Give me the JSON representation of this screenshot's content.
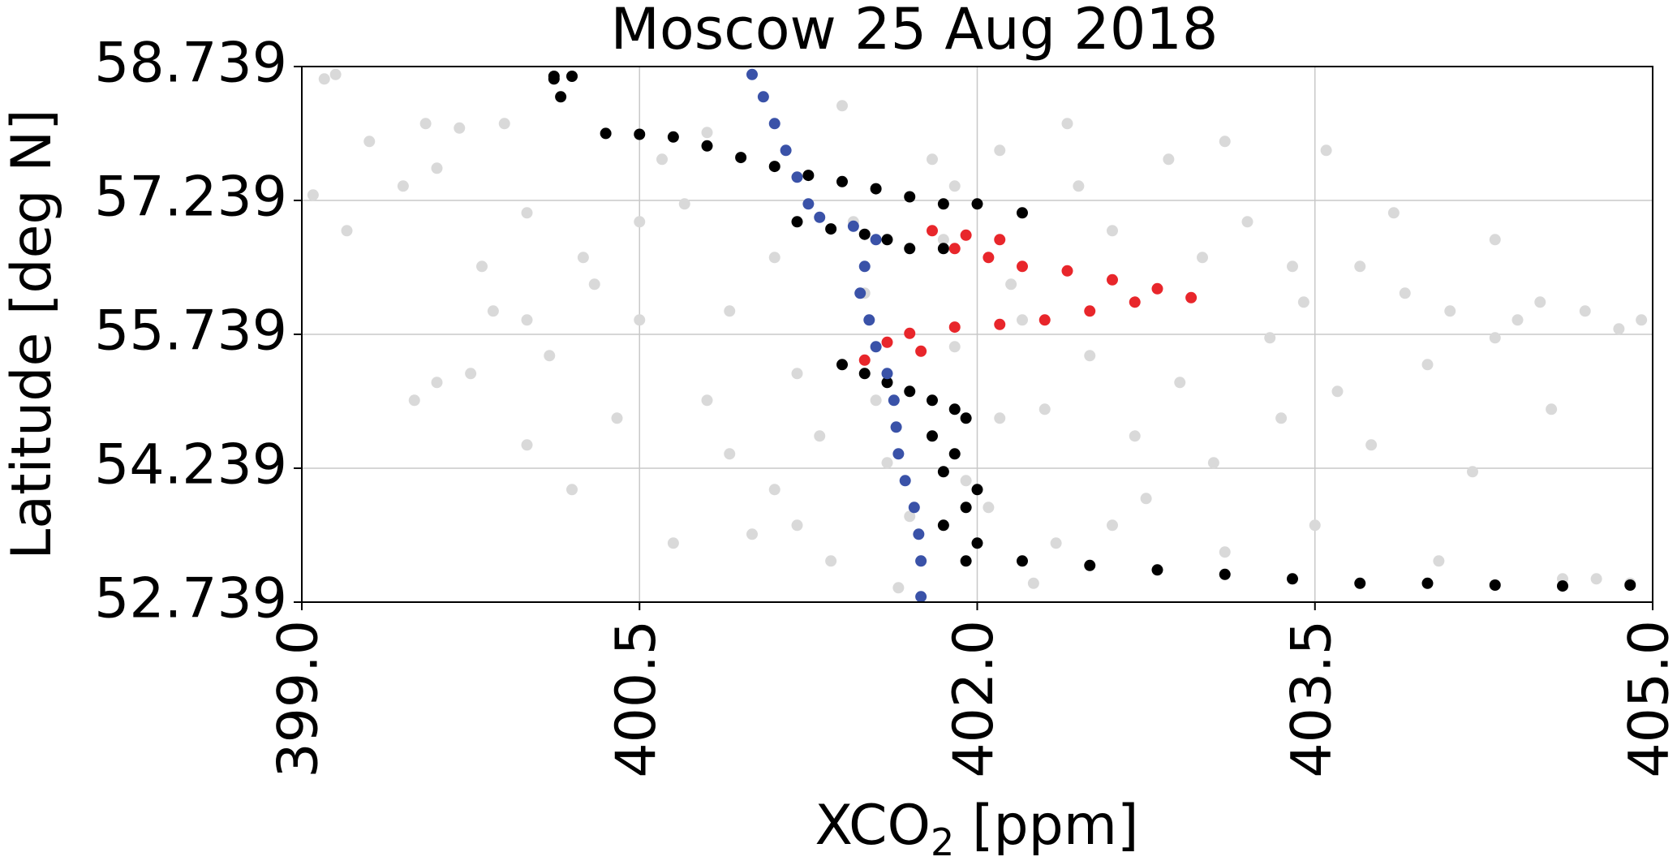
{
  "chart_data": {
    "type": "scatter",
    "title": "Moscow 25 Aug 2018",
    "xlabel_main": "XCO",
    "xlabel_sub": "2",
    "xlabel_suffix": " [ppm]",
    "ylabel": "Latitude [deg N]",
    "xlim": [
      399.0,
      405.0
    ],
    "ylim": [
      52.739,
      58.739
    ],
    "xticks": [
      "399.0",
      "400.5",
      "402.0",
      "403.5",
      "405.0"
    ],
    "yticks": [
      "52.739",
      "54.239",
      "55.739",
      "57.239",
      "58.739"
    ],
    "grid": true,
    "colors": {
      "background_points": "#d9d9d9",
      "black_points": "#000000",
      "red_points": "#e8262b",
      "blue_line": "#3a52a8"
    },
    "series": [
      {
        "color_key": "background_points",
        "points": [
          [
            399.1,
            58.6
          ],
          [
            399.15,
            58.65
          ],
          [
            399.05,
            57.3
          ],
          [
            399.2,
            56.9
          ],
          [
            399.3,
            57.9
          ],
          [
            399.45,
            57.4
          ],
          [
            399.55,
            58.1
          ],
          [
            399.6,
            57.6
          ],
          [
            399.7,
            58.05
          ],
          [
            399.8,
            56.5
          ],
          [
            399.9,
            58.1
          ],
          [
            399.85,
            56.0
          ],
          [
            399.6,
            55.2
          ],
          [
            399.75,
            55.3
          ],
          [
            400.0,
            55.9
          ],
          [
            400.1,
            55.5
          ],
          [
            400.3,
            56.3
          ],
          [
            400.2,
            54.0
          ],
          [
            400.0,
            54.5
          ],
          [
            400.4,
            54.8
          ],
          [
            400.5,
            55.9
          ],
          [
            400.6,
            57.7
          ],
          [
            400.7,
            57.2
          ],
          [
            400.9,
            56.0
          ],
          [
            400.8,
            55.0
          ],
          [
            400.9,
            54.4
          ],
          [
            401.0,
            53.5
          ],
          [
            401.1,
            56.6
          ],
          [
            401.2,
            55.3
          ],
          [
            401.3,
            54.6
          ],
          [
            401.35,
            53.2
          ],
          [
            401.45,
            57.0
          ],
          [
            401.5,
            56.2
          ],
          [
            401.55,
            55.0
          ],
          [
            401.6,
            54.3
          ],
          [
            401.7,
            53.7
          ],
          [
            401.8,
            57.7
          ],
          [
            401.85,
            56.8
          ],
          [
            401.9,
            55.6
          ],
          [
            401.95,
            54.1
          ],
          [
            402.05,
            53.8
          ],
          [
            402.1,
            57.8
          ],
          [
            402.15,
            56.3
          ],
          [
            402.2,
            55.9
          ],
          [
            402.3,
            54.9
          ],
          [
            402.35,
            53.4
          ],
          [
            402.45,
            57.4
          ],
          [
            402.5,
            55.5
          ],
          [
            402.6,
            56.9
          ],
          [
            402.7,
            54.6
          ],
          [
            402.75,
            53.9
          ],
          [
            402.85,
            57.7
          ],
          [
            402.9,
            55.2
          ],
          [
            403.0,
            56.6
          ],
          [
            403.05,
            54.3
          ],
          [
            403.1,
            53.3
          ],
          [
            403.2,
            57.0
          ],
          [
            403.3,
            55.7
          ],
          [
            403.35,
            54.8
          ],
          [
            403.45,
            56.1
          ],
          [
            403.5,
            53.6
          ],
          [
            403.55,
            57.8
          ],
          [
            403.6,
            55.1
          ],
          [
            403.7,
            56.5
          ],
          [
            403.75,
            54.5
          ],
          [
            403.85,
            57.1
          ],
          [
            403.9,
            56.2
          ],
          [
            404.0,
            55.4
          ],
          [
            404.05,
            53.2
          ],
          [
            404.1,
            56.0
          ],
          [
            404.2,
            54.2
          ],
          [
            404.3,
            56.8
          ],
          [
            404.4,
            55.9
          ],
          [
            404.5,
            56.1
          ],
          [
            404.55,
            54.9
          ],
          [
            404.6,
            53.0
          ],
          [
            404.7,
            56.0
          ],
          [
            404.85,
            55.8
          ],
          [
            404.95,
            55.9
          ],
          [
            404.9,
            52.95
          ],
          [
            404.75,
            53.0
          ],
          [
            401.4,
            58.3
          ],
          [
            400.8,
            58.0
          ],
          [
            400.5,
            57.0
          ],
          [
            401.1,
            54.0
          ],
          [
            401.65,
            52.9
          ],
          [
            402.25,
            52.95
          ],
          [
            401.2,
            53.6
          ],
          [
            401.75,
            53.2
          ],
          [
            402.6,
            53.6
          ],
          [
            400.25,
            56.6
          ],
          [
            400.65,
            53.4
          ],
          [
            402.1,
            54.8
          ],
          [
            403.1,
            57.9
          ],
          [
            400.0,
            57.1
          ],
          [
            399.5,
            55.0
          ],
          [
            401.9,
            57.4
          ],
          [
            402.4,
            58.1
          ],
          [
            403.4,
            56.5
          ],
          [
            404.3,
            55.7
          ]
        ]
      },
      {
        "color_key": "black_points",
        "points": [
          [
            400.12,
            58.63
          ],
          [
            400.12,
            58.6
          ],
          [
            400.2,
            58.63
          ],
          [
            400.15,
            58.4
          ],
          [
            400.35,
            57.99
          ],
          [
            400.5,
            57.98
          ],
          [
            400.65,
            57.95
          ],
          [
            400.8,
            57.85
          ],
          [
            400.95,
            57.72
          ],
          [
            401.1,
            57.62
          ],
          [
            401.25,
            57.52
          ],
          [
            401.4,
            57.45
          ],
          [
            401.55,
            57.37
          ],
          [
            401.7,
            57.28
          ],
          [
            401.85,
            57.2
          ],
          [
            402.0,
            57.2
          ],
          [
            402.2,
            57.1
          ],
          [
            401.2,
            57.0
          ],
          [
            401.35,
            56.92
          ],
          [
            401.5,
            56.86
          ],
          [
            401.6,
            56.8
          ],
          [
            401.7,
            56.7
          ],
          [
            401.85,
            56.7
          ],
          [
            401.4,
            55.4
          ],
          [
            401.5,
            55.3
          ],
          [
            401.6,
            55.2
          ],
          [
            401.7,
            55.1
          ],
          [
            401.8,
            55.0
          ],
          [
            401.9,
            54.9
          ],
          [
            401.95,
            54.8
          ],
          [
            401.8,
            54.6
          ],
          [
            401.9,
            54.4
          ],
          [
            401.85,
            54.2
          ],
          [
            402.0,
            54.0
          ],
          [
            401.95,
            53.8
          ],
          [
            401.85,
            53.6
          ],
          [
            402.0,
            53.4
          ],
          [
            401.95,
            53.2
          ],
          [
            402.2,
            53.2
          ],
          [
            402.5,
            53.15
          ],
          [
            402.8,
            53.1
          ],
          [
            403.1,
            53.05
          ],
          [
            403.4,
            53.0
          ],
          [
            403.7,
            52.95
          ],
          [
            404.0,
            52.95
          ],
          [
            404.3,
            52.93
          ],
          [
            404.6,
            52.92
          ],
          [
            404.9,
            52.93
          ]
        ]
      },
      {
        "color_key": "red_points",
        "points": [
          [
            401.8,
            56.9
          ],
          [
            401.95,
            56.85
          ],
          [
            402.1,
            56.8
          ],
          [
            401.9,
            56.7
          ],
          [
            402.05,
            56.6
          ],
          [
            402.2,
            56.5
          ],
          [
            402.4,
            56.45
          ],
          [
            402.6,
            56.35
          ],
          [
            402.8,
            56.25
          ],
          [
            402.95,
            56.15
          ],
          [
            402.7,
            56.1
          ],
          [
            402.5,
            56.0
          ],
          [
            402.3,
            55.9
          ],
          [
            402.1,
            55.85
          ],
          [
            401.9,
            55.82
          ],
          [
            401.7,
            55.75
          ],
          [
            401.6,
            55.65
          ],
          [
            401.75,
            55.55
          ],
          [
            401.5,
            55.45
          ]
        ]
      },
      {
        "color_key": "blue_line",
        "points": [
          [
            401.0,
            58.65
          ],
          [
            401.05,
            58.4
          ],
          [
            401.1,
            58.1
          ],
          [
            401.15,
            57.8
          ],
          [
            401.2,
            57.5
          ],
          [
            401.25,
            57.2
          ],
          [
            401.3,
            57.05
          ],
          [
            401.45,
            56.95
          ],
          [
            401.55,
            56.8
          ],
          [
            401.5,
            56.5
          ],
          [
            401.48,
            56.2
          ],
          [
            401.52,
            55.9
          ],
          [
            401.55,
            55.6
          ],
          [
            401.6,
            55.3
          ],
          [
            401.63,
            55.0
          ],
          [
            401.64,
            54.7
          ],
          [
            401.65,
            54.4
          ],
          [
            401.68,
            54.1
          ],
          [
            401.72,
            53.8
          ],
          [
            401.74,
            53.5
          ],
          [
            401.75,
            53.2
          ],
          [
            401.75,
            52.8
          ]
        ]
      }
    ]
  }
}
